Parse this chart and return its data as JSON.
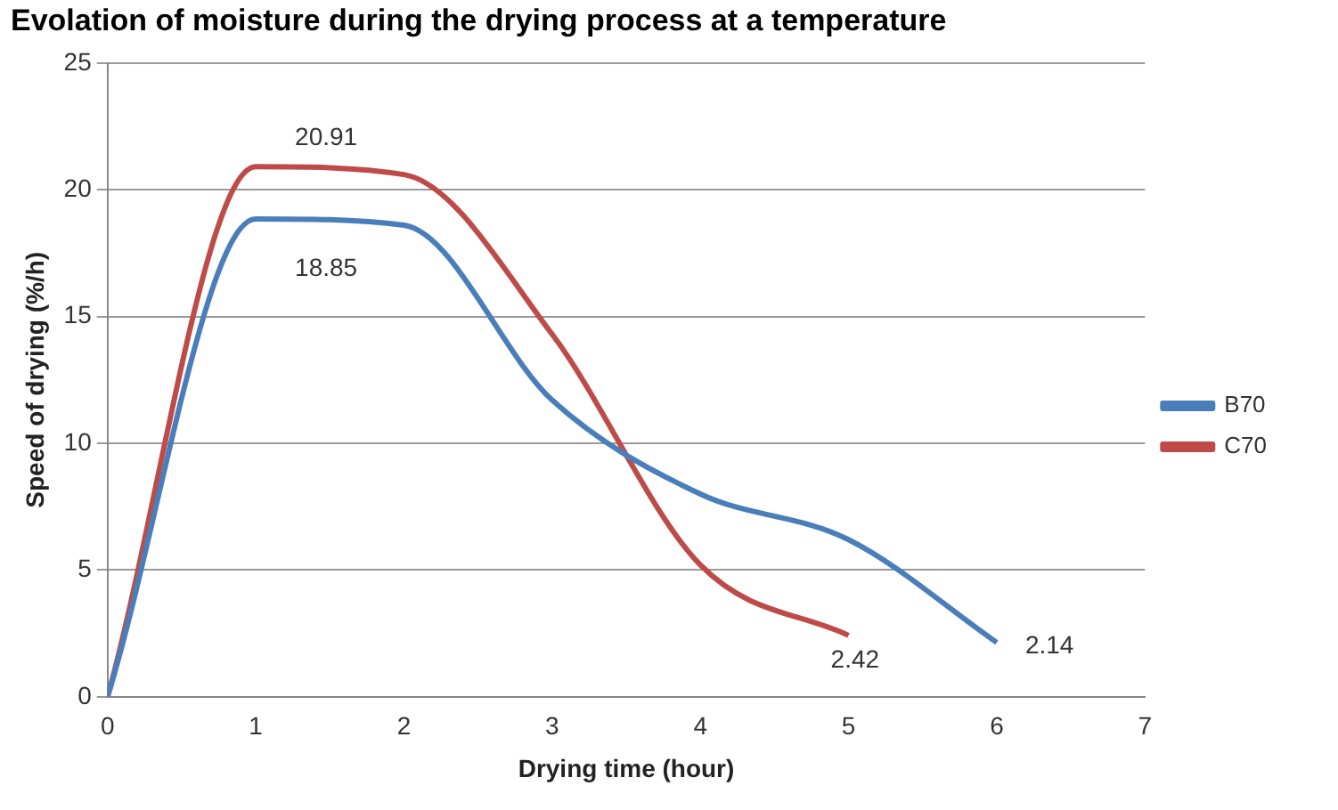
{
  "chart_data": {
    "type": "line",
    "title": "Evolation of moisture during the drying process at a temperature",
    "xlabel": "Drying time (hour)",
    "ylabel": "Speed of drying (%/h)",
    "series": [
      {
        "name": "B70",
        "color": "#4a7ebb",
        "x": [
          0,
          1,
          2,
          3,
          4,
          5,
          6
        ],
        "values": [
          0,
          18.85,
          18.6,
          11.7,
          8.0,
          6.2,
          2.14
        ],
        "value_labels": [
          null,
          "18.85",
          null,
          null,
          null,
          null,
          "2.14"
        ]
      },
      {
        "name": "C70",
        "color": "#be4b48",
        "x": [
          0,
          1,
          2,
          3,
          4,
          5
        ],
        "values": [
          0,
          20.91,
          20.6,
          14.3,
          5.2,
          2.42
        ],
        "value_labels": [
          null,
          "20.91",
          null,
          null,
          null,
          "2.42"
        ]
      }
    ],
    "xlim": [
      0,
      7
    ],
    "xticks": [
      0,
      1,
      2,
      3,
      4,
      5,
      6,
      7
    ],
    "ylim": [
      0,
      25
    ],
    "yticks": [
      0,
      5,
      10,
      15,
      20,
      25
    ],
    "grid": "y",
    "legend": "right",
    "marker": "none",
    "line_style": "solid"
  }
}
